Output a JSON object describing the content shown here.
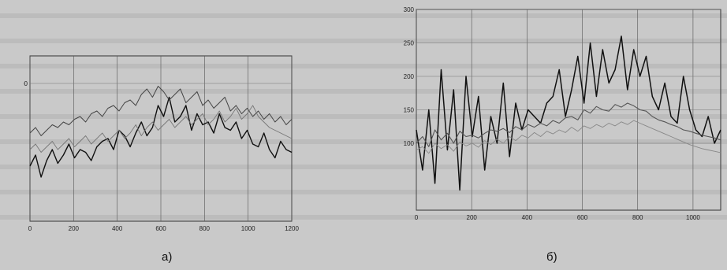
{
  "captions": {
    "a": "а)",
    "b": "б)"
  },
  "chart_data": [
    {
      "type": "line",
      "panel": "а)",
      "xlim": [
        0,
        1200
      ],
      "ylim": [
        0,
        6000
      ],
      "xticks": [
        0,
        200,
        400,
        600,
        800,
        1000,
        1200
      ],
      "yticks": [
        5000
      ],
      "grid": true,
      "series": [
        {
          "values": [
            2000,
            2400,
            1600,
            2200,
            2600,
            2100,
            2400,
            2800,
            2300,
            2600,
            2500,
            2200,
            2700,
            2900,
            3000,
            2600,
            3300,
            3100,
            2700,
            3200,
            3600,
            3100,
            3400,
            4200,
            3800,
            4500,
            3600,
            3800,
            4200,
            3300,
            3900,
            3500,
            3600,
            3200,
            3900,
            3400,
            3300,
            3600,
            3000,
            3300,
            2800,
            2700,
            3200,
            2600,
            2300,
            2900,
            2600,
            2500
          ]
        },
        {
          "values": [
            3200,
            3400,
            3100,
            3300,
            3500,
            3400,
            3600,
            3500,
            3700,
            3800,
            3600,
            3900,
            4000,
            3800,
            4100,
            4200,
            4000,
            4300,
            4400,
            4200,
            4600,
            4800,
            4500,
            4900,
            4700,
            4400,
            4600,
            4800,
            4300,
            4500,
            4700,
            4200,
            4400,
            4100,
            4300,
            4500,
            4000,
            4200,
            3900,
            4100,
            3800,
            4000,
            3700,
            3900,
            3600,
            3800,
            3500,
            3700
          ]
        },
        {
          "values": [
            2600,
            2800,
            2500,
            2700,
            2900,
            2600,
            2800,
            3000,
            2700,
            2900,
            3100,
            2800,
            3000,
            3200,
            2900,
            3100,
            3300,
            3000,
            3200,
            3500,
            3100,
            3400,
            3600,
            3300,
            3500,
            3700,
            3400,
            3600,
            3800,
            3500,
            3700,
            3900,
            3500,
            3700,
            4000,
            3600,
            3800,
            4100,
            3700,
            3900,
            4200,
            3800,
            3600,
            3400,
            3300,
            3200,
            3100,
            3000
          ]
        }
      ]
    },
    {
      "type": "line",
      "panel": "б)",
      "xlim": [
        0,
        1100
      ],
      "ylim": [
        0,
        300
      ],
      "xticks": [
        0,
        200,
        400,
        600,
        800,
        1000
      ],
      "yticks": [
        100,
        150,
        200,
        250,
        300
      ],
      "grid": true,
      "series": [
        {
          "values": [
            120,
            60,
            150,
            40,
            210,
            90,
            180,
            30,
            200,
            110,
            170,
            60,
            140,
            100,
            190,
            80,
            160,
            120,
            150,
            140,
            130,
            160,
            170,
            210,
            140,
            180,
            230,
            160,
            250,
            170,
            240,
            190,
            210,
            260,
            180,
            240,
            200,
            230,
            170,
            150,
            190,
            140,
            130,
            200,
            150,
            120,
            110,
            140,
            100,
            120
          ]
        },
        {
          "values": [
            100,
            110,
            95,
            120,
            105,
            115,
            100,
            118,
            110,
            112,
            108,
            115,
            120,
            118,
            122,
            116,
            125,
            120,
            128,
            124,
            130,
            126,
            134,
            130,
            138,
            140,
            135,
            150,
            145,
            155,
            150,
            148,
            158,
            154,
            160,
            156,
            150,
            148,
            140,
            135,
            132,
            128,
            125,
            120,
            118,
            115,
            112,
            110,
            108,
            105
          ]
        },
        {
          "values": [
            90,
            95,
            85,
            100,
            92,
            98,
            88,
            102,
            96,
            100,
            94,
            104,
            98,
            106,
            100,
            110,
            104,
            112,
            108,
            116,
            110,
            118,
            114,
            120,
            116,
            124,
            118,
            126,
            122,
            128,
            124,
            130,
            126,
            132,
            128,
            134,
            130,
            126,
            122,
            118,
            114,
            110,
            106,
            102,
            98,
            95,
            92,
            90,
            88,
            86
          ]
        }
      ]
    }
  ]
}
